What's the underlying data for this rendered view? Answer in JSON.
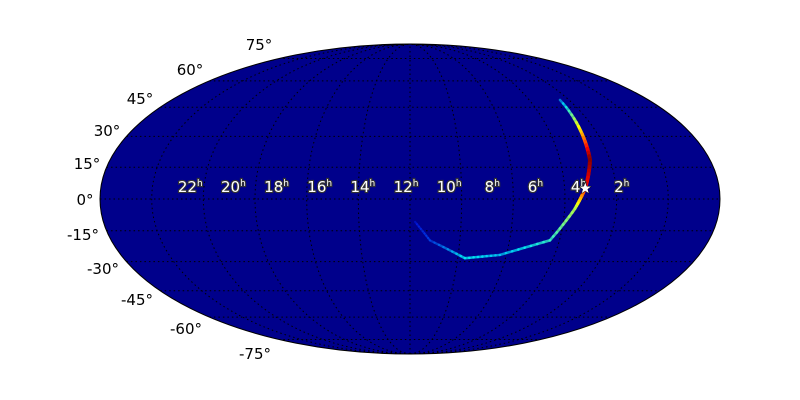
{
  "chart_data": {
    "type": "heatmap",
    "projection": "mollweide",
    "colormap": "jet",
    "background_color": "#00008b",
    "grid": true,
    "dec_ticks": [
      {
        "value": 75,
        "label": "75°"
      },
      {
        "value": 60,
        "label": "60°"
      },
      {
        "value": 45,
        "label": "45°"
      },
      {
        "value": 30,
        "label": "30°"
      },
      {
        "value": 15,
        "label": "15°"
      },
      {
        "value": 0,
        "label": "0°"
      },
      {
        "value": -15,
        "label": "-15°"
      },
      {
        "value": -30,
        "label": "-30°"
      },
      {
        "value": -45,
        "label": "-45°"
      },
      {
        "value": -60,
        "label": "-60°"
      },
      {
        "value": -75,
        "label": "-75°"
      }
    ],
    "ra_ticks": [
      {
        "value": 22,
        "label": "22",
        "unit": "h"
      },
      {
        "value": 20,
        "label": "20",
        "unit": "h"
      },
      {
        "value": 18,
        "label": "18",
        "unit": "h"
      },
      {
        "value": 16,
        "label": "16",
        "unit": "h"
      },
      {
        "value": 14,
        "label": "14",
        "unit": "h"
      },
      {
        "value": 12,
        "label": "12",
        "unit": "h"
      },
      {
        "value": 10,
        "label": "10",
        "unit": "h"
      },
      {
        "value": 8,
        "label": "8",
        "unit": "h"
      },
      {
        "value": 6,
        "label": "6",
        "unit": "h"
      },
      {
        "value": 4,
        "label": "4",
        "unit": "h"
      },
      {
        "value": 2,
        "label": "2",
        "unit": "h"
      }
    ],
    "localization_arc": [
      {
        "ra": 4.45,
        "dec": 49,
        "prob": 0.2
      },
      {
        "ra": 4.64,
        "dec": 33,
        "prob": 0.6
      },
      {
        "ra": 4.8,
        "dec": 18.5,
        "prob": 1.0
      },
      {
        "ra": 5.2,
        "dec": 5,
        "prob": 0.85
      },
      {
        "ra": 5.6,
        "dec": -4.5,
        "prob": 0.5
      },
      {
        "ra": 6.38,
        "dec": -19.6,
        "prob": 0.35
      },
      {
        "ra": 8.27,
        "dec": -26.7,
        "prob": 0.25
      },
      {
        "ra": 9.7,
        "dec": -28.3,
        "prob": 0.3
      },
      {
        "ra": 11.2,
        "dec": -19.6,
        "prob": 0.1
      },
      {
        "ra": 11.8,
        "dec": -10.8,
        "prob": 0.04
      }
    ],
    "marker": {
      "symbol": "star",
      "ra": 5.2,
      "dec": 5,
      "color": "#ffffff"
    }
  }
}
